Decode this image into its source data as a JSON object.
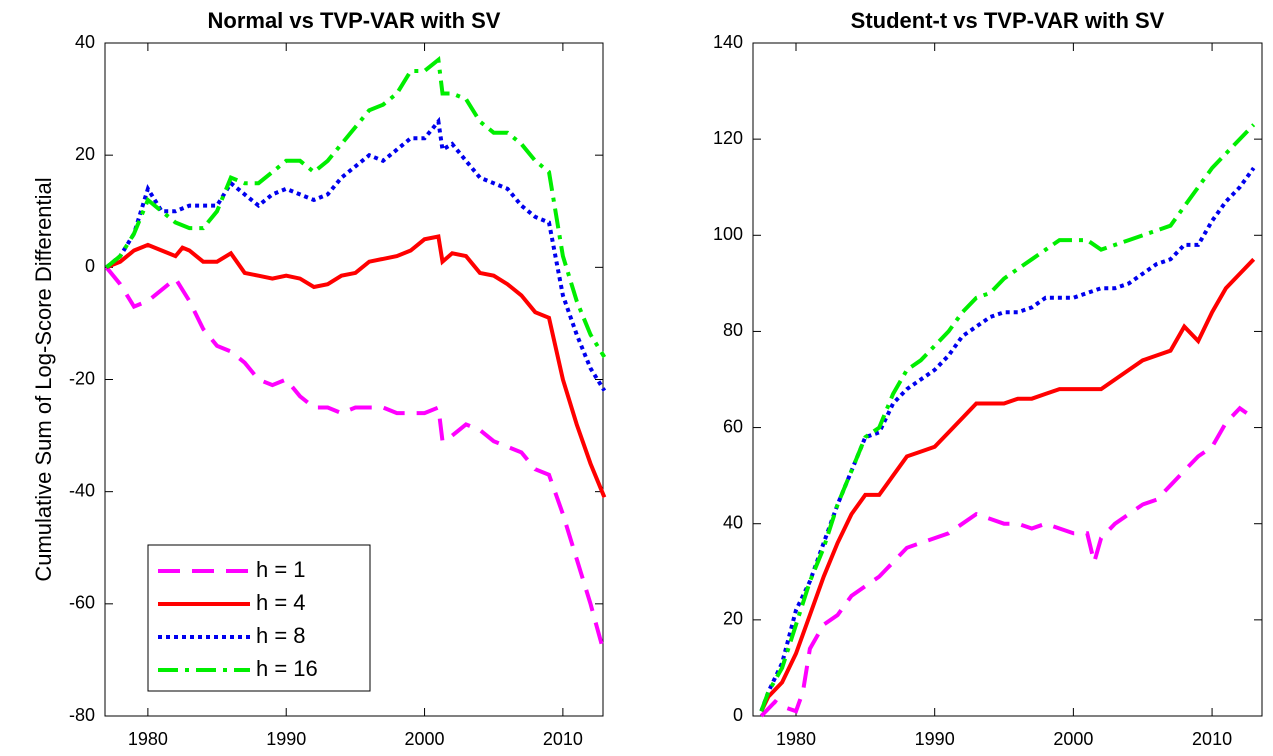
{
  "chart_data": [
    {
      "type": "line",
      "title": "Normal vs TVP-VAR with SV",
      "ylabel": "Cumulative Sum of Log-Score Differential",
      "xlim": [
        1976.9,
        2012.9
      ],
      "xticks": [
        1980,
        1990,
        2000,
        2010
      ],
      "ylim": [
        -80,
        40
      ],
      "yticks": [
        -80,
        -60,
        -40,
        -20,
        0,
        20,
        40
      ],
      "legend": "lower left",
      "series": [
        {
          "name": "h = 1",
          "color": "#ff00ff",
          "style": "dashed",
          "x": [
            1977,
            1978,
            1979,
            1980,
            1981,
            1982,
            1983,
            1984,
            1985,
            1986,
            1987,
            1988,
            1989,
            1990,
            1991,
            1992,
            1993,
            1994,
            1995,
            1996,
            1997,
            1998,
            1999,
            2000,
            2001,
            2001.3,
            2002,
            2003,
            2004,
            2005,
            2006,
            2007,
            2008,
            2009,
            2010,
            2011,
            2012,
            2013
          ],
          "values": [
            0,
            -3,
            -7,
            -6,
            -4,
            -2,
            -6,
            -11,
            -14,
            -15,
            -17,
            -20,
            -21,
            -20,
            -23,
            -25,
            -25,
            -26,
            -25,
            -25,
            -25,
            -26,
            -26,
            -26,
            -25,
            -31,
            -30,
            -28,
            -29,
            -31,
            -32,
            -33,
            -36,
            -37,
            -44,
            -52,
            -60,
            -69
          ]
        },
        {
          "name": "h = 4",
          "color": "#ff0000",
          "style": "solid",
          "x": [
            1977,
            1978,
            1979,
            1980,
            1981,
            1982,
            1982.5,
            1983,
            1984,
            1985,
            1986,
            1987,
            1988,
            1989,
            1990,
            1991,
            1992,
            1993,
            1994,
            1995,
            1996,
            1997,
            1998,
            1999,
            2000,
            2001,
            2001.3,
            2002,
            2003,
            2004,
            2005,
            2006,
            2007,
            2008,
            2009,
            2010,
            2011,
            2012,
            2013
          ],
          "values": [
            0,
            1,
            3,
            4,
            3,
            2,
            3.5,
            3,
            1,
            1,
            2.5,
            -1,
            -1.5,
            -2,
            -1.5,
            -2,
            -3.5,
            -3,
            -1.5,
            -1,
            1,
            1.5,
            2,
            3,
            5,
            5.5,
            1,
            2.5,
            2,
            -1,
            -1.5,
            -3,
            -5,
            -8,
            -9,
            -20,
            -28,
            -35,
            -41
          ]
        },
        {
          "name": "h = 8",
          "color": "#0000ee",
          "style": "dotted",
          "x": [
            1977,
            1978,
            1979,
            1980,
            1981,
            1982,
            1983,
            1984,
            1985,
            1986,
            1987,
            1988,
            1989,
            1990,
            1991,
            1992,
            1993,
            1994,
            1995,
            1996,
            1997,
            1998,
            1999,
            2000,
            2001,
            2001.3,
            2002,
            2003,
            2004,
            2005,
            2006,
            2007,
            2008,
            2009,
            2010,
            2011,
            2012,
            2013
          ],
          "values": [
            0,
            2,
            6,
            14,
            10,
            10,
            11,
            11,
            11,
            15,
            13,
            11,
            13,
            14,
            13,
            12,
            13,
            16,
            18,
            20,
            19,
            21,
            23,
            23,
            26,
            21,
            22,
            19,
            16,
            15,
            14,
            11,
            9,
            8,
            -5,
            -12,
            -18,
            -22
          ]
        },
        {
          "name": "h = 16",
          "color": "#00ee00",
          "style": "dashdot",
          "x": [
            1977,
            1978,
            1979,
            1980,
            1981,
            1982,
            1983,
            1984,
            1985,
            1986,
            1987,
            1988,
            1989,
            1990,
            1991,
            1992,
            1993,
            1994,
            1995,
            1996,
            1997,
            1998,
            1999,
            2000,
            2001,
            2001.3,
            2002,
            2003,
            2004,
            2005,
            2006,
            2007,
            2008,
            2009,
            2010,
            2011,
            2012,
            2013
          ],
          "values": [
            0,
            2,
            6,
            12,
            10,
            8,
            7,
            7,
            10,
            16,
            15,
            15,
            17,
            19,
            19,
            17,
            19,
            22,
            25,
            28,
            29,
            31,
            35,
            35,
            37,
            31,
            31,
            30,
            26,
            24,
            24,
            22,
            19,
            17,
            2,
            -6,
            -12,
            -16
          ]
        }
      ]
    },
    {
      "type": "line",
      "title": "Student-t vs TVP-VAR with SV",
      "xlim": [
        1976.9,
        2013.6
      ],
      "xticks": [
        1980,
        1990,
        2000,
        2010
      ],
      "ylim": [
        0,
        140
      ],
      "yticks": [
        0,
        20,
        40,
        60,
        80,
        100,
        120,
        140
      ],
      "series": [
        {
          "color": "#ff00ff",
          "style": "dashed",
          "x": [
            1977.5,
            1978.5,
            1979,
            1980,
            1980.5,
            1981,
            1982,
            1983,
            1984,
            1985,
            1986,
            1987,
            1988,
            1989,
            1990,
            1991,
            1992,
            1993,
            1994,
            1995,
            1996,
            1997,
            1998,
            1999,
            2000,
            2001,
            2001.5,
            2002,
            2003,
            2004,
            2005,
            2006,
            2007,
            2008,
            2009,
            2010,
            2011,
            2012,
            2012.5
          ],
          "values": [
            0,
            3,
            2,
            1,
            5,
            14,
            19,
            21,
            25,
            27,
            29,
            32,
            35,
            36,
            37,
            38,
            40,
            42,
            41,
            40,
            40,
            39,
            40,
            39,
            38,
            38,
            32,
            37,
            40,
            42,
            44,
            45,
            48,
            51,
            54,
            56,
            61,
            64,
            63
          ]
        },
        {
          "color": "#ff0000",
          "style": "solid",
          "x": [
            1977.5,
            1978,
            1979,
            1980,
            1981,
            1982,
            1983,
            1984,
            1985,
            1986,
            1987,
            1988,
            1989,
            1990,
            1991,
            1992,
            1993,
            1994,
            1995,
            1996,
            1997,
            1998,
            1999,
            2000,
            2001,
            2002,
            2003,
            2004,
            2005,
            2006,
            2007,
            2008,
            2009,
            2010,
            2011,
            2012,
            2013
          ],
          "values": [
            1,
            4,
            7,
            13,
            21,
            29,
            36,
            42,
            46,
            46,
            50,
            54,
            55,
            56,
            59,
            62,
            65,
            65,
            65,
            66,
            66,
            67,
            68,
            68,
            68,
            68,
            70,
            72,
            74,
            75,
            76,
            81,
            78,
            84,
            89,
            92,
            95
          ]
        },
        {
          "color": "#0000ee",
          "style": "dotted",
          "x": [
            1977.5,
            1978,
            1979,
            1980,
            1981,
            1982,
            1983,
            1984,
            1985,
            1986,
            1987,
            1988,
            1989,
            1990,
            1991,
            1992,
            1993,
            1994,
            1995,
            1996,
            1997,
            1998,
            1999,
            2000,
            2001,
            2002,
            2003,
            2004,
            2005,
            2006,
            2007,
            2008,
            2009,
            2010,
            2011,
            2012,
            2013
          ],
          "values": [
            1,
            5,
            11,
            22,
            28,
            36,
            44,
            51,
            58,
            59,
            65,
            68,
            70,
            72,
            75,
            79,
            81,
            83,
            84,
            84,
            85,
            87,
            87,
            87,
            88,
            89,
            89,
            90,
            92,
            94,
            95,
            98,
            98,
            103,
            107,
            110,
            114
          ]
        },
        {
          "color": "#00ee00",
          "style": "dashdot",
          "x": [
            1977.5,
            1978,
            1979,
            1980,
            1981,
            1982,
            1983,
            1984,
            1985,
            1986,
            1987,
            1988,
            1989,
            1990,
            1991,
            1992,
            1993,
            1994,
            1995,
            1996,
            1997,
            1998,
            1999,
            2000,
            2001,
            2002,
            2003,
            2004,
            2005,
            2006,
            2007,
            2008,
            2009,
            2010,
            2011,
            2012,
            2013
          ],
          "values": [
            1,
            5,
            10,
            19,
            28,
            35,
            44,
            51,
            58,
            60,
            67,
            72,
            74,
            77,
            80,
            84,
            87,
            88,
            91,
            93,
            95,
            97,
            99,
            99,
            99,
            97,
            98,
            99,
            100,
            101,
            102,
            106,
            110,
            114,
            117,
            120,
            123
          ]
        }
      ]
    }
  ]
}
